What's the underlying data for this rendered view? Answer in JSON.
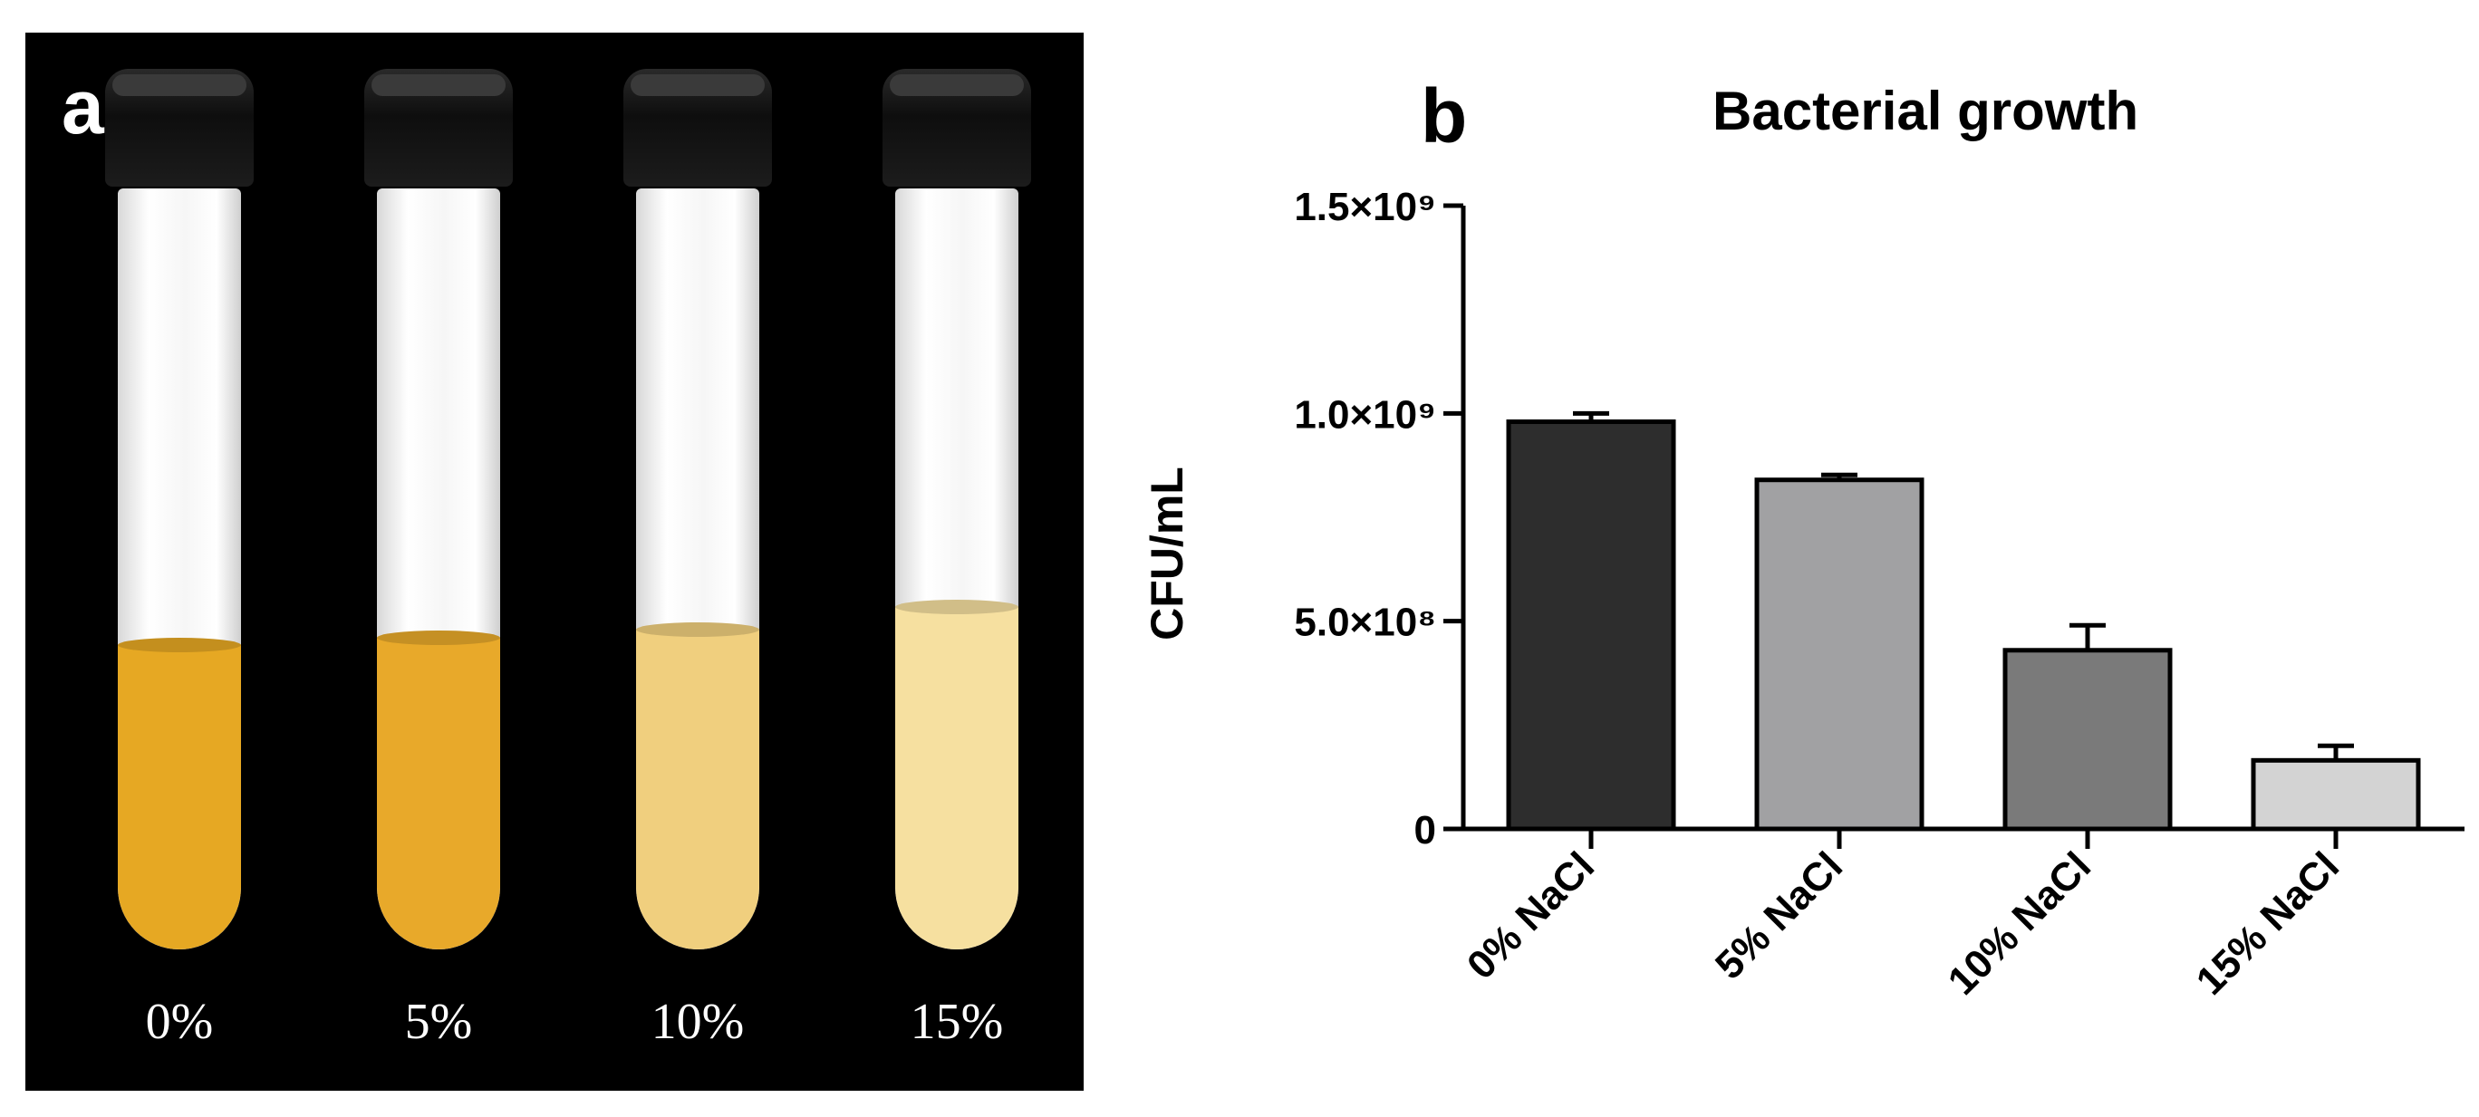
{
  "panel_a": {
    "letter": "a",
    "tubes": [
      {
        "label": "0%",
        "liquid_color": "#e6a823",
        "liquid_fraction": 0.4
      },
      {
        "label": "5%",
        "liquid_color": "#e8a92a",
        "liquid_fraction": 0.41
      },
      {
        "label": "10%",
        "liquid_color": "#f0cf7e",
        "liquid_fraction": 0.42
      },
      {
        "label": "15%",
        "liquid_color": "#f6e0a0",
        "liquid_fraction": 0.45
      }
    ]
  },
  "panel_b": {
    "letter": "b"
  },
  "chart_data": {
    "type": "bar",
    "title": "Bacterial growth",
    "xlabel": "",
    "ylabel": "CFU/mL",
    "ylim": [
      0,
      1500000000
    ],
    "yticks": [
      {
        "value": 0,
        "label": "0"
      },
      {
        "value": 500000000,
        "label": "5.0×10⁸"
      },
      {
        "value": 1000000000,
        "label": "1.0×10⁹"
      },
      {
        "value": 1500000000,
        "label": "1.5×10⁹"
      }
    ],
    "categories": [
      "0% NaCl",
      "5% NaCl",
      "10% NaCl",
      "15% NaCl"
    ],
    "values": [
      980000000,
      840000000,
      430000000,
      165000000
    ],
    "errors": [
      20000000,
      12000000,
      60000000,
      35000000
    ],
    "colors": [
      "#2d2d2d",
      "#a1a1a3",
      "#7a7a7a",
      "#d3d3d3"
    ],
    "grid": false,
    "legend": "none"
  }
}
